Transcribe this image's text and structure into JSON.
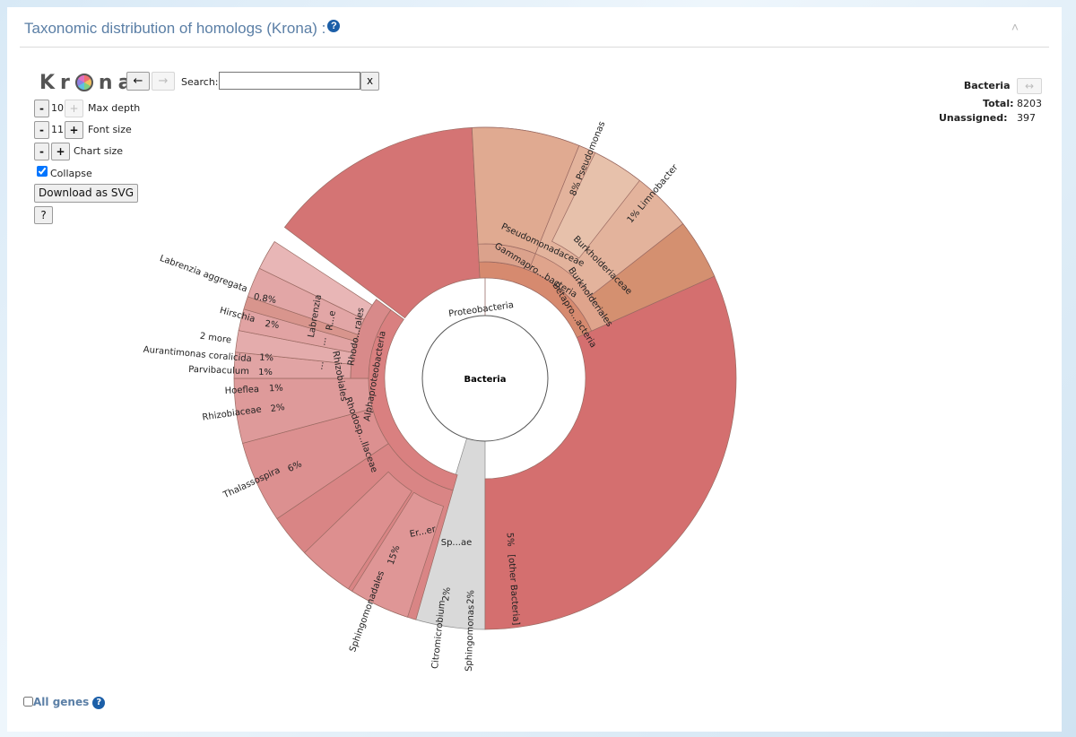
{
  "panel": {
    "title": "Taxonomic distribution of homologs (Krona) :",
    "help_icon": "question-circle-icon",
    "collapse_icon": "chevron-up-icon"
  },
  "krona": {
    "logo_left": "Kr",
    "logo_right": "na",
    "back_label": "←",
    "forward_label": "→",
    "search_label": "Search:",
    "search_value": "",
    "clear_label": "x",
    "max_depth": {
      "minus": "-",
      "value": "10",
      "plus": "+",
      "label": "Max depth"
    },
    "font_size": {
      "minus": "-",
      "value": "11",
      "plus": "+",
      "label": "Font size"
    },
    "chart_size": {
      "minus": "-",
      "plus": "+",
      "label": "Chart size"
    },
    "collapse_label": "Collapse",
    "collapse_checked": true,
    "download_label": "Download as SVG",
    "help_label": "?"
  },
  "details": {
    "name": "Bacteria",
    "expand_icon": "↔",
    "total_label": "Total:",
    "total_value": "8203",
    "unassigned_label": "Unassigned:",
    "unassigned_value": "397"
  },
  "footer": {
    "all_genes_label": "All genes",
    "help_label": "?"
  },
  "chart_data": {
    "type": "sunburst",
    "center": "Bacteria",
    "labels": {
      "proteobacteria": "Proteobacteria",
      "alphaproteobacteria": "Alphaproteobacteria",
      "gammaproteobacteria": "Gammapro...bacteria",
      "betaproteobacteria": "Betapro...acteria",
      "pseudomonadaceae": "Pseudomonadaceae",
      "burkholderiales": "Burkholderiales",
      "burkholderiaceae": "Burkholderiaceae",
      "pseudomonas": "8%  Pseudomonas",
      "limnobacter": "1%  Limnobacter",
      "rhodobacterales": "Rhodo...rales",
      "rhizobiales": "Rhizobiales",
      "rhodospirillaceae": "Rhodosp...llaceae",
      "labrenzia_genus": "Labrenzia",
      "r_short": "R...e",
      "labrenzia_aggregata": "Labrenzia aggregata",
      "labrenzia_pct": "0.8%",
      "hirschia": "Hirschia",
      "hirschia_pct": "2%",
      "two_more": "2 more",
      "aurantimonas": "Aurantimonas coralicida",
      "aurantimonas_pct": "1%",
      "parvibaculum": "Parvibaculum",
      "parvibaculum_pct": "1%",
      "hoeflea": "Hoeflea",
      "hoeflea_pct": "1%",
      "rhizobiaceae": "Rhizobiaceae",
      "rhizobiaceae_pct": "2%",
      "thalassospira": "Thalassospira",
      "thalassospira_pct": "6%",
      "sphingomonadales": "Sphingomonadales",
      "sphingomonadales_pct": "15%",
      "erythro": "Er...er",
      "sphingo_family": "Sp...ae",
      "citromicrobium": "Citromicrobium",
      "citromicrobium_pct": "2%",
      "sphingomonas": "Sphingomonas",
      "sphingomonas_pct": "2%",
      "other_bacteria": "[other Bacteria]",
      "other_pct": "5%",
      "ellipsis1": "...",
      "ellipsis2": "..."
    }
  }
}
